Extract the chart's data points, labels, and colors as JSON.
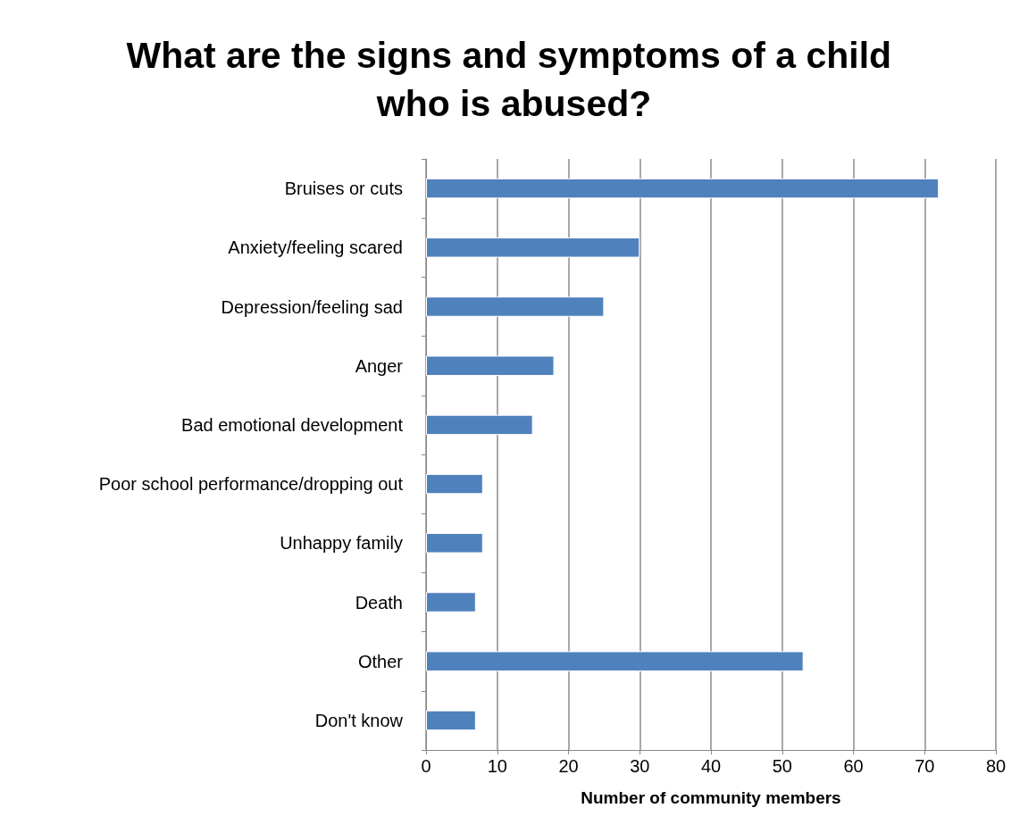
{
  "chart_data": {
    "type": "bar",
    "orientation": "horizontal",
    "title": "What are the signs and symptoms of a child who is abused?",
    "xlabel": "Number of community members",
    "categories": [
      "Bruises or cuts",
      "Anxiety/feeling scared",
      "Depression/feeling sad",
      "Anger",
      "Bad emotional development",
      "Poor school performance/dropping out",
      "Unhappy family",
      "Death",
      "Other",
      "Don't know"
    ],
    "values": [
      72,
      30,
      25,
      18,
      15,
      8,
      8,
      7,
      53,
      7
    ],
    "color": "#4f81bd",
    "xlim": [
      0,
      80
    ],
    "xticks": [
      0,
      10,
      20,
      30,
      40,
      50,
      60,
      70,
      80
    ],
    "grid": "x"
  }
}
